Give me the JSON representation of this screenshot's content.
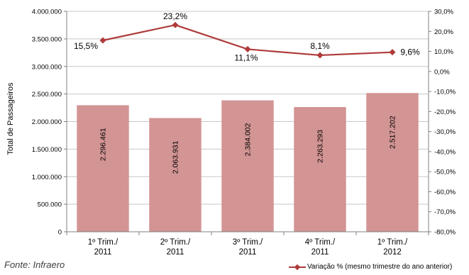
{
  "source_note": "Fonte: Infraero",
  "colors": {
    "bar": "#d39494",
    "line": "#b03b3b",
    "grid": "#c8c8c8",
    "axis": "#808080"
  },
  "chart_data": {
    "type": "bar",
    "categories": [
      [
        "1º Trim./",
        "2011"
      ],
      [
        "2º Trim./",
        "2011"
      ],
      [
        "3º Trim./",
        "2011"
      ],
      [
        "4º Trim./",
        "2011"
      ],
      [
        "1º Trim./",
        "2012"
      ]
    ],
    "ylabel": "Total de Passageiros",
    "ylim": [
      0,
      4000000
    ],
    "y_ticks": [
      "0",
      "500.000",
      "1.000.000",
      "1.500.000",
      "2.000.000",
      "2.500.000",
      "3.000.000",
      "3.500.000",
      "4.000.000"
    ],
    "y2lim": [
      -80,
      30
    ],
    "y2_ticks": [
      "-80,0%",
      "-70,0%",
      "-60,0%",
      "-50,0%",
      "-40,0%",
      "-30,0%",
      "-20,0%",
      "-10,0%",
      "0,0%",
      "10,0%",
      "20,0%",
      "30,0%"
    ],
    "grid": true,
    "series": [
      {
        "type": "bar",
        "values": [
          2296461,
          2063931,
          2384002,
          2263293,
          2517202
        ],
        "labels": [
          "2.296.461",
          "2.063.931",
          "2.384.002",
          "2.263.293",
          "2.517.202"
        ]
      },
      {
        "type": "line",
        "axis": "secondary",
        "name": "Variação % (mesmo trimestre do ano anterior)",
        "values": [
          15.5,
          23.2,
          11.1,
          8.1,
          9.6
        ],
        "labels": [
          "15,5%",
          "23,2%",
          "11,1%",
          "8,1%",
          "9,6%"
        ]
      }
    ],
    "legend": "bottom-right"
  }
}
